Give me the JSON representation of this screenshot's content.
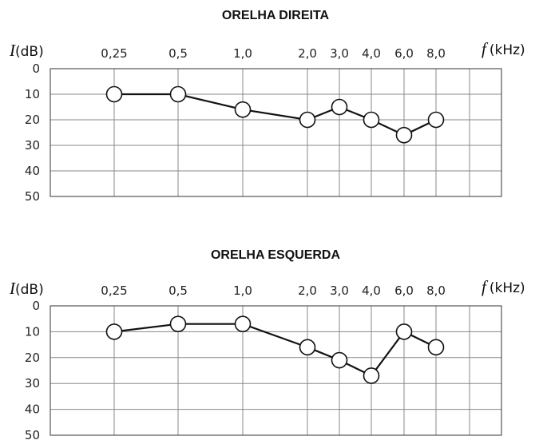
{
  "chart_data": [
    {
      "type": "line",
      "title": "ORELHA DIREITA",
      "ylabel_symbol": "I",
      "ylabel_unit": "(dB)",
      "xlabel_symbol": "f",
      "xlabel_unit": "(kHz)",
      "categories": [
        "0,25",
        "0,5",
        "1,0",
        "2,0",
        "3,0",
        "4,0",
        "6,0",
        "8,0"
      ],
      "values": [
        10,
        10,
        16,
        20,
        15,
        20,
        26,
        20
      ],
      "yticks": [
        "0",
        "10",
        "20",
        "30",
        "40",
        "50"
      ],
      "ylim": [
        0,
        50
      ],
      "y_inverted": true,
      "grid": true
    },
    {
      "type": "line",
      "title": "ORELHA ESQUERDA",
      "ylabel_symbol": "I",
      "ylabel_unit": "(dB)",
      "xlabel_symbol": "f",
      "xlabel_unit": "(kHz)",
      "categories": [
        "0,25",
        "0,5",
        "1,0",
        "2,0",
        "3,0",
        "4,0",
        "6,0",
        "8,0"
      ],
      "values": [
        10,
        7,
        7,
        16,
        21,
        27,
        10,
        16
      ],
      "yticks": [
        "0",
        "10",
        "20",
        "30",
        "40",
        "50"
      ],
      "ylim": [
        0,
        50
      ],
      "y_inverted": true,
      "grid": true
    }
  ]
}
